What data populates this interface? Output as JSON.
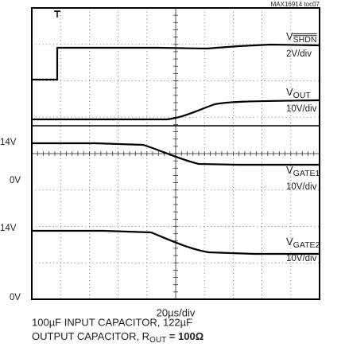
{
  "figure_id": "MAX16914 toc07",
  "trigger_marker": "T",
  "channels": [
    {
      "name_main": "V",
      "name_sub": "SHDN",
      "scale": "2V/div"
    },
    {
      "name_main": "V",
      "name_sub": "OUT",
      "scale": "10V/div"
    },
    {
      "name_main": "V",
      "name_sub": "GATE1",
      "scale": "10V/div"
    },
    {
      "name_main": "V",
      "name_sub": "GATE2",
      "scale": "10V/div"
    }
  ],
  "left_labels": [
    "14V",
    "0V",
    "14V",
    "0V"
  ],
  "time_scale": "20µs/div",
  "caption": {
    "line1": "100µF INPUT CAPACITOR, 122µF",
    "line2_start": "OUTPUT CAPACITOR, R",
    "line2_sub": "OUT",
    "line2_end": " = 100Ω"
  }
}
